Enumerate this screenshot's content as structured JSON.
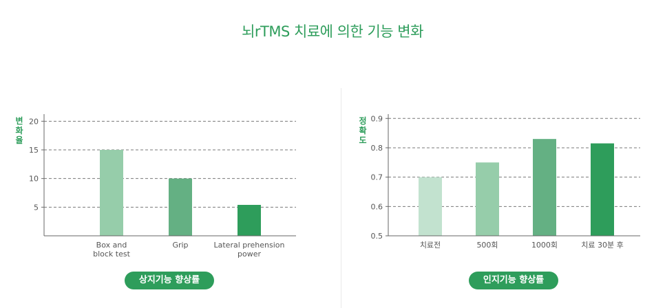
{
  "page_title": "뇌rTMS 치료에 의한 기능 변화",
  "pill_left": "상지기능 향상률",
  "pill_right": "인지기능 향상률",
  "colors": {
    "title": "#2e9d5b",
    "pill_bg": "#2e9d5b",
    "bar_shades": [
      "#c2e2cf",
      "#96cdaa",
      "#64b083",
      "#2e9d5b"
    ]
  },
  "chart_data": [
    {
      "type": "bar",
      "title": "",
      "ylabel": "변화율",
      "xlabel": "",
      "categories": [
        "Box and\nblock test",
        "Grip",
        "Lateral prehension\npower"
      ],
      "values": [
        15,
        10,
        5.4
      ],
      "ylim": [
        0,
        21
      ],
      "yticks": [
        5,
        10,
        15,
        20
      ],
      "grid": "dashed-horizontal",
      "bar_colors": [
        "#96cdaa",
        "#64b083",
        "#2e9d5b"
      ]
    },
    {
      "type": "bar",
      "title": "",
      "ylabel": "정확도",
      "xlabel": "",
      "categories": [
        "치료전",
        "500회",
        "1000회",
        "치료 30분 후"
      ],
      "values": [
        0.7,
        0.75,
        0.83,
        0.815
      ],
      "ylim": [
        0.5,
        0.91
      ],
      "yticks": [
        0.5,
        0.6,
        0.7,
        0.8,
        0.9
      ],
      "grid": "dashed-horizontal",
      "bar_colors": [
        "#c2e2cf",
        "#96cdaa",
        "#64b083",
        "#2e9d5b"
      ]
    }
  ]
}
